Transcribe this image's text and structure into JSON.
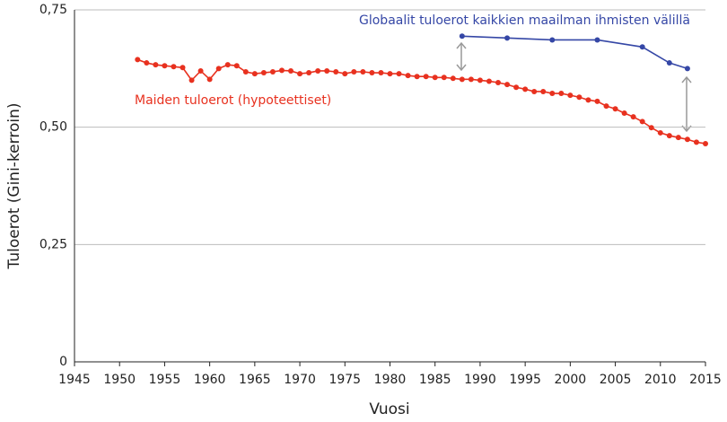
{
  "chart_data": {
    "type": "line",
    "x_label": "Vuosi",
    "y_label": "Tuloerot (Gini-kerroin)",
    "xlim": [
      1945,
      2015
    ],
    "xticks": [
      1945,
      1950,
      1955,
      1960,
      1965,
      1970,
      1975,
      1980,
      1985,
      1990,
      1995,
      2000,
      2005,
      2010,
      2015
    ],
    "ylim": [
      0,
      0.75
    ],
    "yticks": [
      0,
      {
        "value": 0.25,
        "label": "0,25"
      },
      {
        "value": 0.5,
        "label": "0,50"
      },
      {
        "value": 0.75,
        "label": "0,75"
      }
    ],
    "grid": true,
    "series": [
      {
        "name": "Maiden tuloerot (hypoteettiset)",
        "color": "#e8311f",
        "x": [
          1952,
          1953,
          1954,
          1955,
          1956,
          1957,
          1958,
          1959,
          1960,
          1961,
          1962,
          1963,
          1964,
          1965,
          1966,
          1967,
          1968,
          1969,
          1970,
          1971,
          1972,
          1973,
          1974,
          1975,
          1976,
          1977,
          1978,
          1979,
          1980,
          1981,
          1982,
          1983,
          1984,
          1985,
          1986,
          1987,
          1988,
          1989,
          1990,
          1991,
          1992,
          1993,
          1994,
          1995,
          1996,
          1997,
          1998,
          1999,
          2000,
          2001,
          2002,
          2003,
          2004,
          2005,
          2006,
          2007,
          2008,
          2009,
          2010,
          2011,
          2012,
          2013,
          2014,
          2015
        ],
        "values": [
          0.644,
          0.637,
          0.633,
          0.631,
          0.629,
          0.627,
          0.6,
          0.62,
          0.602,
          0.625,
          0.633,
          0.631,
          0.618,
          0.614,
          0.616,
          0.618,
          0.621,
          0.62,
          0.614,
          0.616,
          0.62,
          0.62,
          0.618,
          0.614,
          0.618,
          0.618,
          0.616,
          0.616,
          0.614,
          0.614,
          0.61,
          0.608,
          0.608,
          0.606,
          0.606,
          0.604,
          0.602,
          0.602,
          0.6,
          0.598,
          0.595,
          0.591,
          0.585,
          0.581,
          0.576,
          0.576,
          0.572,
          0.572,
          0.568,
          0.564,
          0.558,
          0.555,
          0.545,
          0.539,
          0.53,
          0.522,
          0.512,
          0.499,
          0.488,
          0.482,
          0.478,
          0.474,
          0.468,
          0.465
        ]
      },
      {
        "name": "Globaalit tuloerot kaikkien maailman ihmisten välillä",
        "color": "#3547a6",
        "x": [
          1988,
          1993,
          1998,
          2003,
          2008,
          2011,
          2013
        ],
        "values": [
          0.694,
          0.69,
          0.686,
          0.686,
          0.671,
          0.637,
          0.625
        ]
      }
    ]
  }
}
